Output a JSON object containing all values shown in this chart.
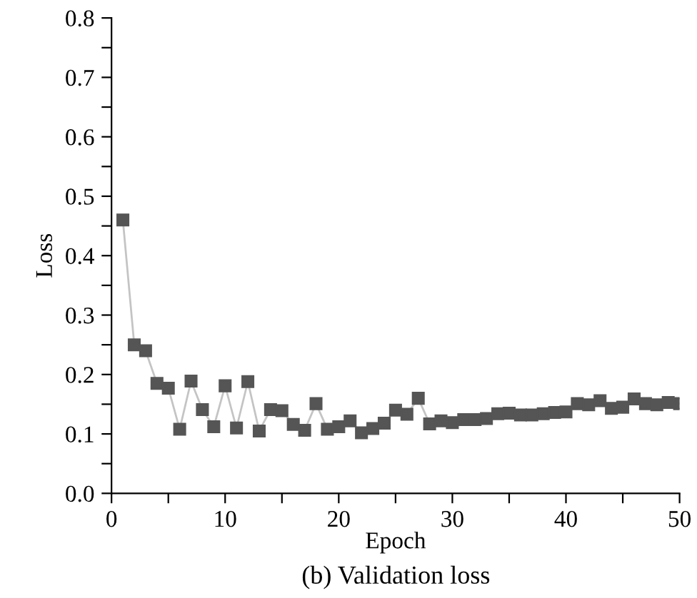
{
  "chart_data": {
    "type": "line",
    "title": "(b) Validation loss",
    "xlabel": "Epoch",
    "ylabel": "Loss",
    "x": [
      1,
      2,
      3,
      4,
      5,
      6,
      7,
      8,
      9,
      10,
      11,
      12,
      13,
      14,
      15,
      16,
      17,
      18,
      19,
      20,
      21,
      22,
      23,
      24,
      25,
      26,
      27,
      28,
      29,
      30,
      31,
      32,
      33,
      34,
      35,
      36,
      37,
      38,
      39,
      40,
      41,
      42,
      43,
      44,
      45,
      46,
      47,
      48,
      49,
      50
    ],
    "series": [
      {
        "color": "#555555",
        "values": [
          0.46,
          0.25,
          0.24,
          0.185,
          0.177,
          0.108,
          0.189,
          0.141,
          0.112,
          0.181,
          0.11,
          0.188,
          0.105,
          0.141,
          0.139,
          0.116,
          0.106,
          0.151,
          0.108,
          0.112,
          0.122,
          0.102,
          0.109,
          0.118,
          0.14,
          0.133,
          0.16,
          0.117,
          0.122,
          0.119,
          0.124,
          0.124,
          0.126,
          0.134,
          0.135,
          0.132,
          0.132,
          0.134,
          0.136,
          0.137,
          0.151,
          0.149,
          0.156,
          0.143,
          0.145,
          0.159,
          0.151,
          0.149,
          0.153,
          0.151
        ]
      }
    ],
    "marker": "square",
    "line_style": "solid",
    "grid": false,
    "legend": false,
    "xlim": [
      0,
      50
    ],
    "ylim": [
      0,
      0.8
    ],
    "xticks": [
      0,
      {
        "value": 5,
        "label": null
      },
      10,
      {
        "value": 15,
        "label": null
      },
      20,
      {
        "value": 25,
        "label": null
      },
      30,
      {
        "value": 35,
        "label": null
      },
      40,
      {
        "value": 45,
        "label": null
      },
      50
    ],
    "yticks": [
      {
        "value": 0,
        "label": "0.0"
      },
      {
        "value": 0.05,
        "label": null
      },
      0.1,
      {
        "value": 0.15,
        "label": null
      },
      0.2,
      {
        "value": 0.25,
        "label": null
      },
      0.3,
      {
        "value": 0.35,
        "label": null
      },
      0.4,
      {
        "value": 0.45,
        "label": null
      },
      0.5,
      {
        "value": 0.55,
        "label": null
      },
      0.6,
      {
        "value": 0.65,
        "label": null
      },
      0.7,
      {
        "value": 0.75,
        "label": null
      },
      0.8
    ]
  }
}
